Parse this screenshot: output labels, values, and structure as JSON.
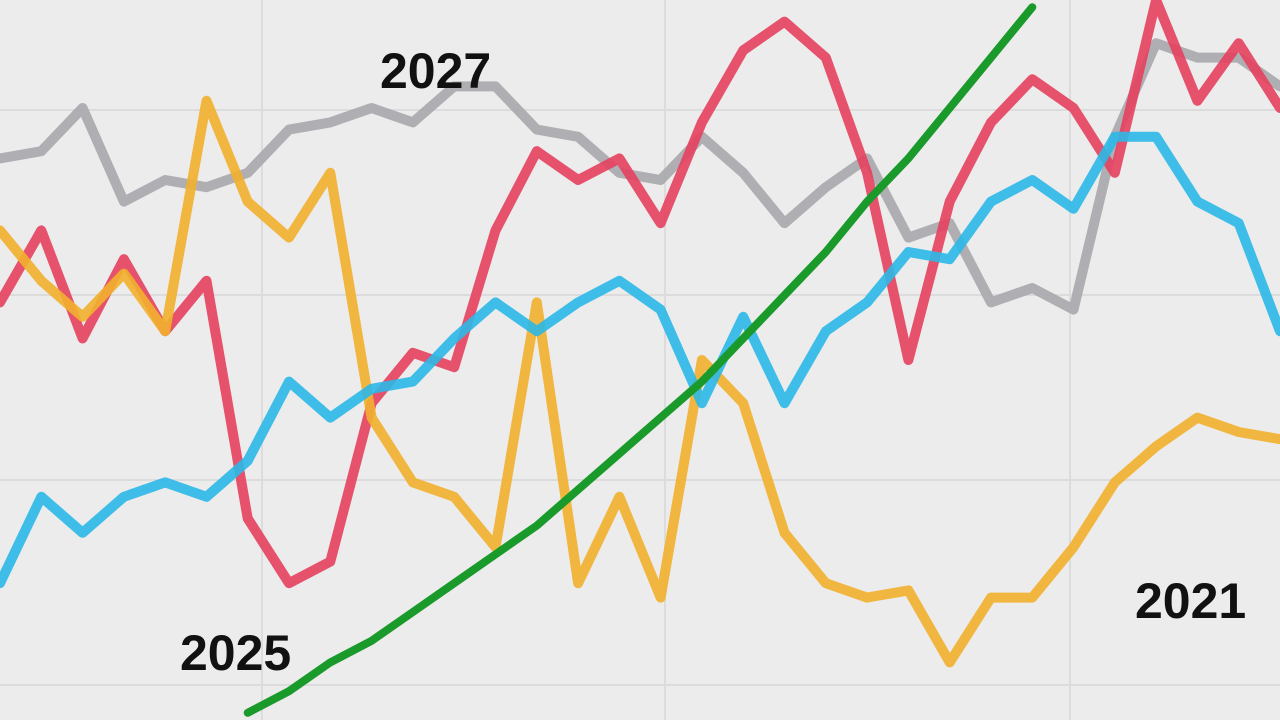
{
  "chart_data": {
    "type": "line",
    "annotations": [
      "2027",
      "2025",
      "2021"
    ],
    "series": [
      {
        "color": "#a9a9ad",
        "values": [
          78,
          79,
          85,
          72,
          75,
          74,
          76,
          82,
          83,
          85,
          83,
          88,
          88,
          82,
          81,
          76,
          75,
          81,
          76,
          69,
          74,
          78,
          67,
          69,
          58,
          60,
          57,
          81,
          94,
          92,
          92,
          88
        ]
      },
      {
        "color": "#e5405e",
        "values": [
          58,
          68,
          53,
          64,
          54,
          61,
          28,
          19,
          22,
          44,
          51,
          49,
          68,
          79,
          75,
          78,
          69,
          83,
          93,
          97,
          92,
          76,
          50,
          72,
          83,
          89,
          85,
          76,
          100,
          86,
          94,
          85
        ]
      },
      {
        "color": "#f2b02d",
        "values": [
          68,
          61,
          56,
          62,
          54,
          86,
          72,
          67,
          76,
          42,
          33,
          31,
          24,
          58,
          19,
          31,
          17,
          50,
          44,
          26,
          19,
          17,
          18,
          8,
          17,
          17,
          24,
          33,
          38,
          42,
          40,
          39
        ]
      },
      {
        "color": "#2bb8e8",
        "values": [
          19,
          31,
          26,
          31,
          33,
          31,
          36,
          47,
          42,
          46,
          47,
          53,
          58,
          54,
          58,
          61,
          57,
          44,
          56,
          44,
          54,
          58,
          65,
          64,
          72,
          75,
          71,
          81,
          81,
          72,
          69,
          54
        ]
      },
      {
        "color": "#1a9a2a",
        "values": [
          null,
          null,
          null,
          null,
          null,
          null,
          1,
          4,
          8,
          11,
          15,
          19,
          23,
          27,
          32,
          37,
          42,
          47,
          53,
          59,
          65,
          72,
          78,
          85,
          92,
          99,
          null,
          null,
          null,
          null,
          null,
          null
        ]
      }
    ]
  }
}
